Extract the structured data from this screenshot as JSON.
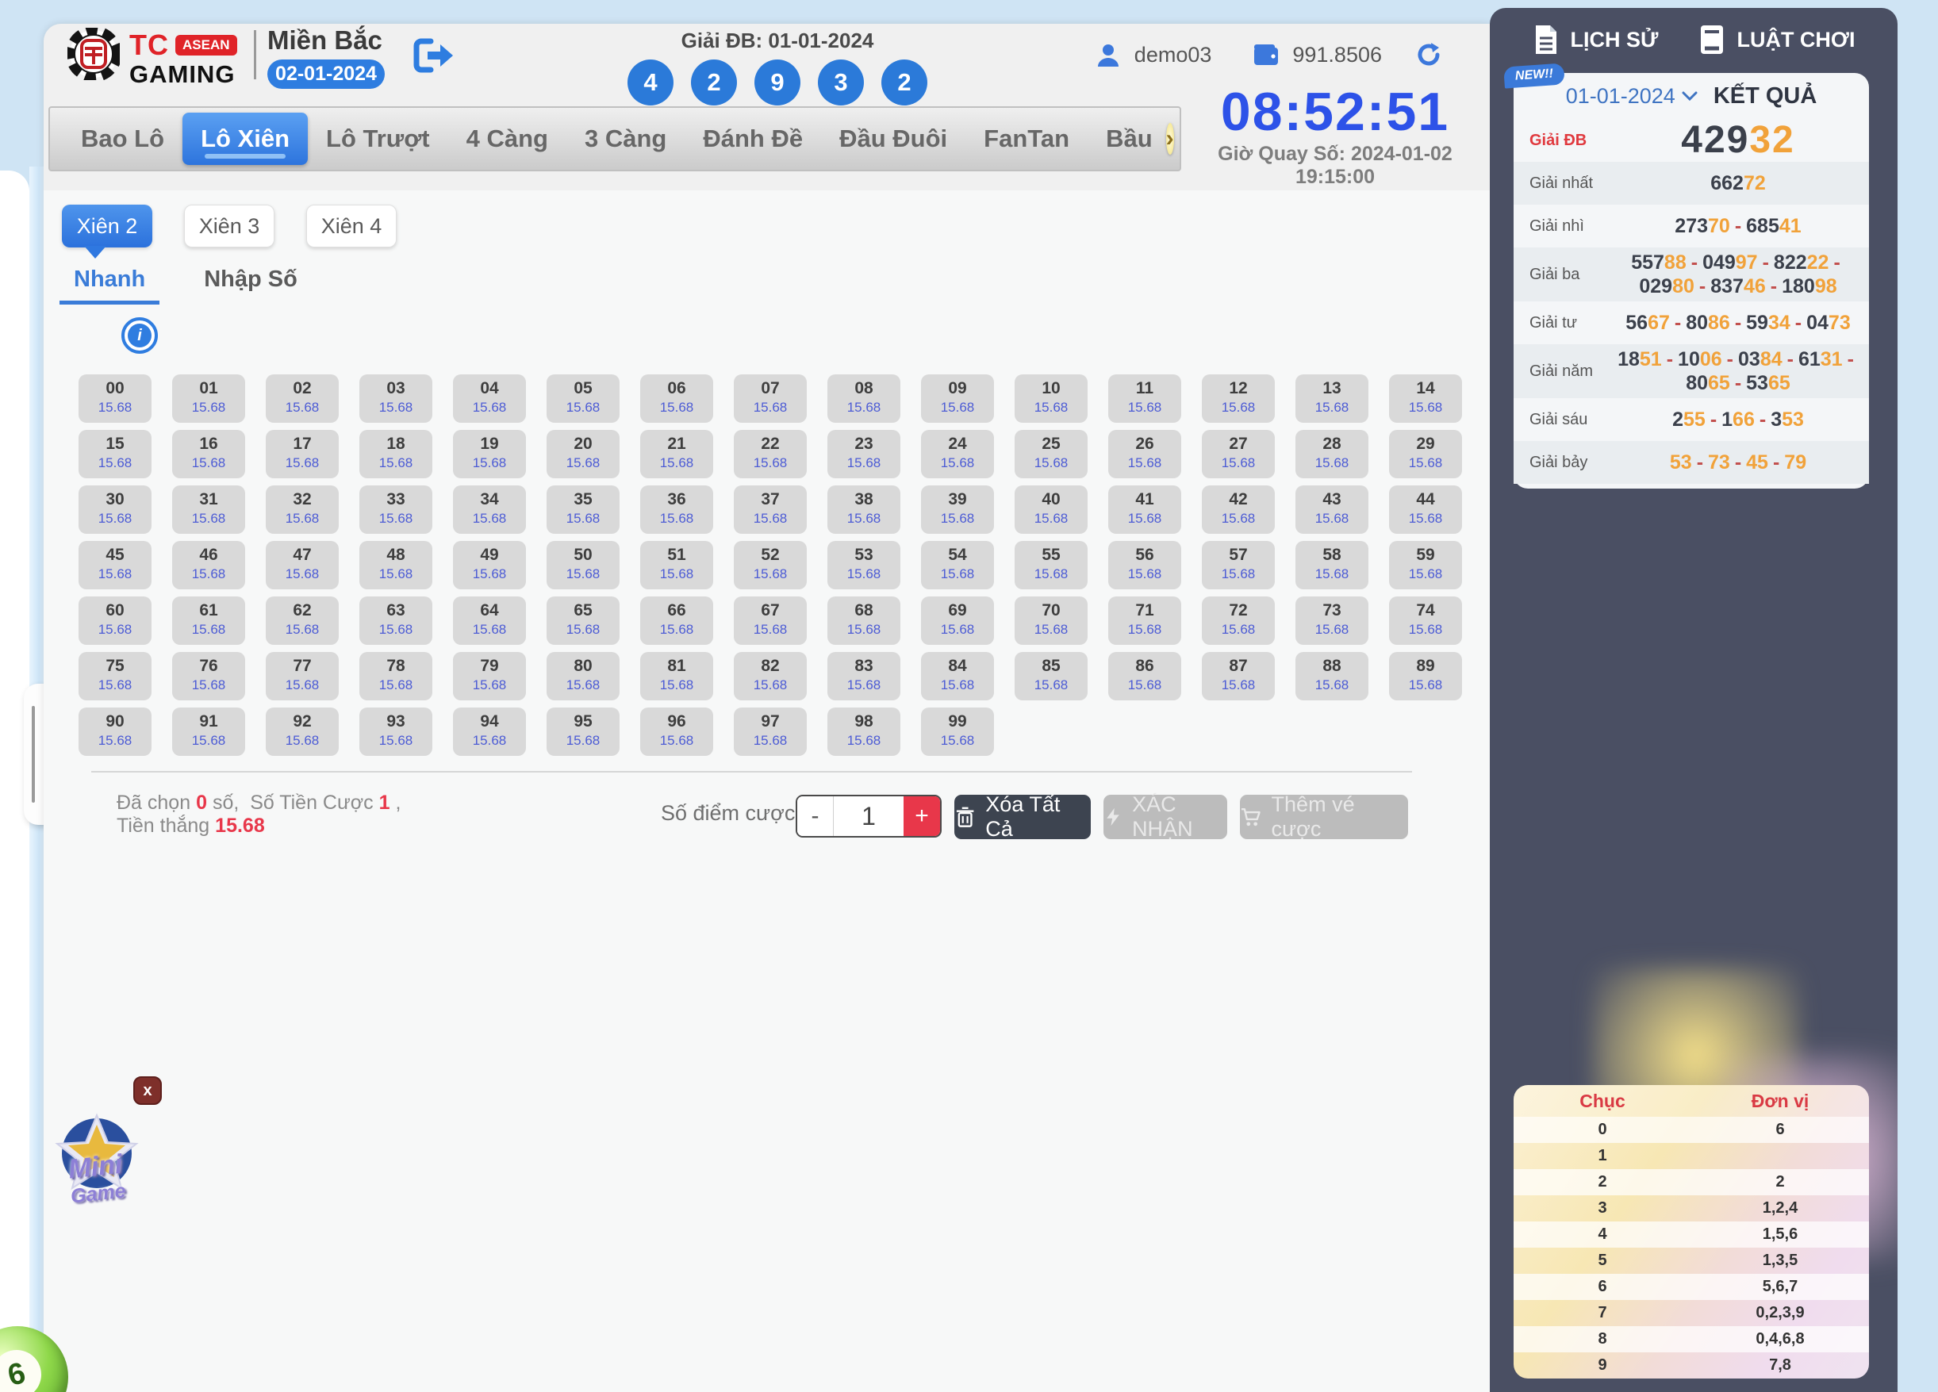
{
  "header": {
    "brand": {
      "tc": "TC",
      "asean": "ASEAN",
      "gaming": "GAMING"
    },
    "region": {
      "title": "Miền Bắc",
      "date": "02-01-2024"
    },
    "draw": {
      "label": "Giải ĐB: 01-01-2024",
      "balls": [
        "4",
        "2",
        "9",
        "3",
        "2"
      ]
    },
    "user": {
      "name": "demo03",
      "balance": "991.8506"
    }
  },
  "nav": {
    "tabs": [
      {
        "label": "Bao Lô",
        "active": false
      },
      {
        "label": "Lô Xiên",
        "active": true
      },
      {
        "label": "Lô Trượt",
        "active": false
      },
      {
        "label": "4 Càng",
        "active": false
      },
      {
        "label": "3 Càng",
        "active": false
      },
      {
        "label": "Đánh Đề",
        "active": false
      },
      {
        "label": "Đầu Đuôi",
        "active": false
      },
      {
        "label": "FanTan",
        "active": false
      },
      {
        "label": "Bầu",
        "active": false
      }
    ],
    "more": "›"
  },
  "timer": {
    "time": "08:52:51",
    "subtitle": "Giờ Quay Số: 2024-01-02 19:15:00"
  },
  "bet": {
    "xien_tabs": [
      {
        "label": "Xiên 2",
        "active": true
      },
      {
        "label": "Xiên 3",
        "active": false
      },
      {
        "label": "Xiên 4",
        "active": false
      }
    ],
    "mode_tabs": [
      {
        "label": "Nhanh",
        "active": true
      },
      {
        "label": "Nhập Số",
        "active": false
      }
    ],
    "info_icon": "i",
    "grid": {
      "odds": "15.68",
      "numbers": [
        "00",
        "01",
        "02",
        "03",
        "04",
        "05",
        "06",
        "07",
        "08",
        "09",
        "10",
        "11",
        "12",
        "13",
        "14",
        "15",
        "16",
        "17",
        "18",
        "19",
        "20",
        "21",
        "22",
        "23",
        "24",
        "25",
        "26",
        "27",
        "28",
        "29",
        "30",
        "31",
        "32",
        "33",
        "34",
        "35",
        "36",
        "37",
        "38",
        "39",
        "40",
        "41",
        "42",
        "43",
        "44",
        "45",
        "46",
        "47",
        "48",
        "49",
        "50",
        "51",
        "52",
        "53",
        "54",
        "55",
        "56",
        "57",
        "58",
        "59",
        "60",
        "61",
        "62",
        "63",
        "64",
        "65",
        "66",
        "67",
        "68",
        "69",
        "70",
        "71",
        "72",
        "73",
        "74",
        "75",
        "76",
        "77",
        "78",
        "79",
        "80",
        "81",
        "82",
        "83",
        "84",
        "85",
        "86",
        "87",
        "88",
        "89",
        "90",
        "91",
        "92",
        "93",
        "94",
        "95",
        "96",
        "97",
        "98",
        "99"
      ]
    },
    "summary": {
      "chosen_prefix": "Đã chọn",
      "chosen_value": "0",
      "chosen_suffix": "số,",
      "stake_prefix": "Số Tiền Cược",
      "stake_value": "1",
      "stake_suffix": ",",
      "win_prefix": "Tiền thắng",
      "win_value": "15.68"
    },
    "points_label": "Số điểm cược",
    "stepper": {
      "minus": "-",
      "value": "1",
      "plus": "+"
    },
    "buttons": {
      "clear": "Xóa Tất Cả",
      "confirm": "XÁC NHẬN",
      "add": "Thêm vé cược"
    }
  },
  "sidebar": {
    "history": "LỊCH SỬ",
    "rules": "LUẬT CHƠI",
    "results": {
      "badge": "NEW!!",
      "date": "01-01-2024",
      "title": "KẾT QUẢ",
      "rows": [
        {
          "label": "Giải ĐB",
          "numbers": [
            "42932"
          ],
          "big": true,
          "red": true
        },
        {
          "label": "Giải nhất",
          "numbers": [
            "66272"
          ]
        },
        {
          "label": "Giải nhì",
          "numbers": [
            "27370",
            "68541"
          ]
        },
        {
          "label": "Giải ba",
          "numbers": [
            "55788",
            "04997",
            "82222",
            "02980",
            "83746",
            "18098"
          ]
        },
        {
          "label": "Giải tư",
          "numbers": [
            "5667",
            "8086",
            "5934",
            "0473"
          ]
        },
        {
          "label": "Giải năm",
          "numbers": [
            "1851",
            "1006",
            "0384",
            "6131",
            "8065",
            "5365"
          ]
        },
        {
          "label": "Giải sáu",
          "numbers": [
            "255",
            "166",
            "353"
          ]
        },
        {
          "label": "Giải bảy",
          "numbers": [
            "53",
            "73",
            "45",
            "79"
          ]
        }
      ],
      "tail_digits": 2,
      "separator": "-"
    },
    "digit_table": {
      "headers": [
        "Chục",
        "Đơn vị"
      ],
      "rows": [
        [
          "0",
          "6"
        ],
        [
          "1",
          ""
        ],
        [
          "2",
          "2"
        ],
        [
          "3",
          "1,2,4"
        ],
        [
          "4",
          "1,5,6"
        ],
        [
          "5",
          "1,3,5"
        ],
        [
          "6",
          "5,6,7"
        ],
        [
          "7",
          "0,2,3,9"
        ],
        [
          "8",
          "0,4,6,8"
        ],
        [
          "9",
          "7,8"
        ]
      ]
    }
  },
  "floaters": {
    "close": "x",
    "minigame_line1": "Mini",
    "minigame_line2": "Game",
    "ball_number": "6",
    "drawer_chevron": "›"
  },
  "colors": {
    "accent_blue": "#2e7de0",
    "timer_blue": "#2d52e8",
    "red": "#e8374a",
    "orange": "#f1a23a",
    "navy": "#4a4f63",
    "brand_red": "#e02328"
  }
}
